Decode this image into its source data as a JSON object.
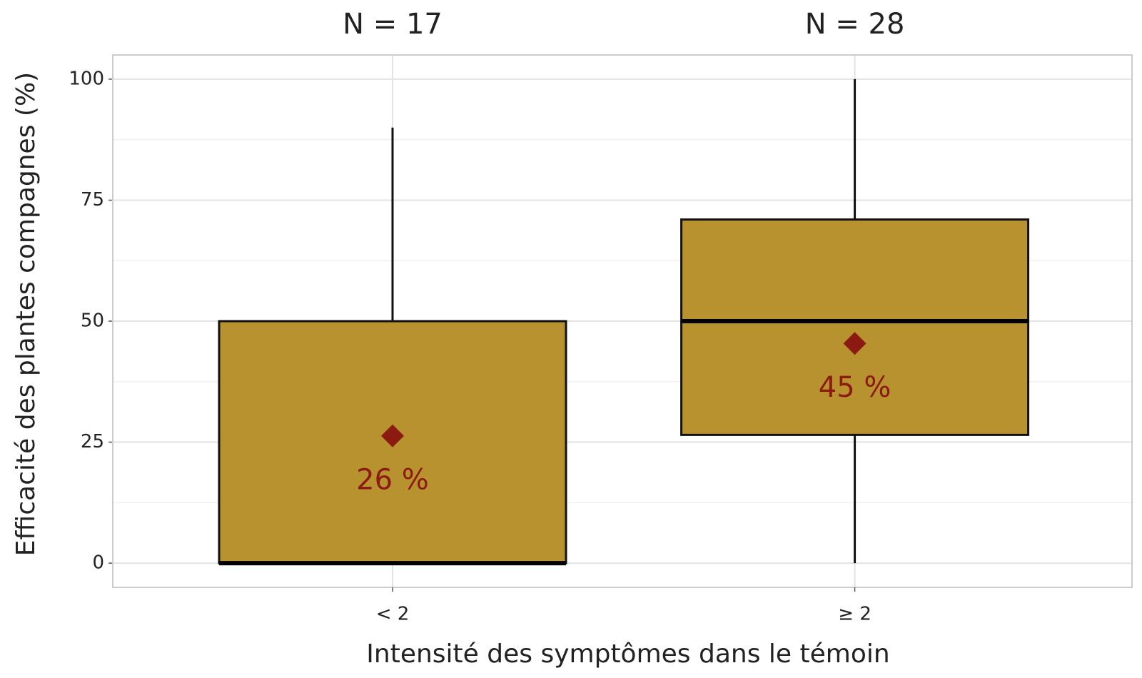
{
  "chart_data": {
    "type": "box",
    "x_label": "Intensité des symptômes dans le témoin",
    "y_label": "Efficacité des plantes compagnes (%)",
    "categories": [
      "< 2",
      "≥ 2"
    ],
    "annotations": [
      "N = 17",
      "N = 28"
    ],
    "boxes": [
      {
        "min": 0,
        "q1": 0,
        "median": 0,
        "q3": 50,
        "max": 90,
        "mean": 26.3,
        "mean_label": "26 %"
      },
      {
        "min": 0,
        "q1": 26.5,
        "median": 50,
        "q3": 71,
        "max": 100,
        "mean": 45.4,
        "mean_label": "45 %"
      }
    ],
    "box_color": "#b8922f",
    "mean_color": "#8b1a10",
    "ylim": [
      -5,
      105
    ],
    "yticks": [
      0,
      25,
      50,
      75,
      100
    ],
    "minor_yticks": [
      12.5,
      37.5,
      62.5,
      87.5
    ],
    "grid": true
  }
}
